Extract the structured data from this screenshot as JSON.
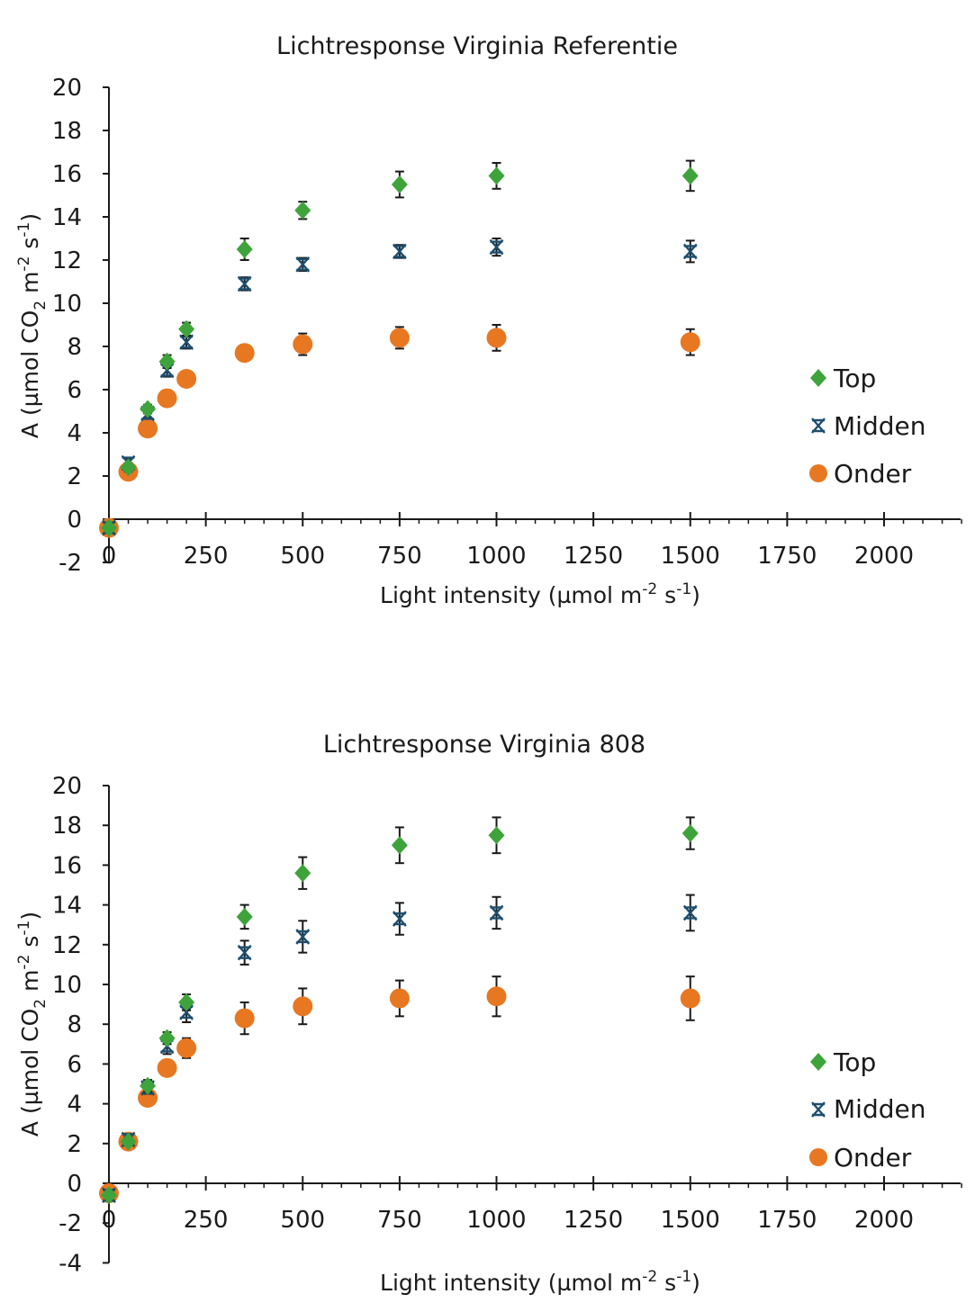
{
  "colors": {
    "top": "#3ea33b",
    "midden": "#1d4e6e",
    "onder": "#e87722",
    "axis": "#1a1a1a",
    "errorbar": "#1a1a1a"
  },
  "chart_data": [
    {
      "type": "scatter",
      "title": "Lichtresponse Virginia Referentie",
      "xlabel": {
        "main": "Light intensity (µmol m",
        "sup1": "-2",
        "mid": " s",
        "sup2": "-1",
        "end": ")"
      },
      "ylabel": {
        "main": "A (µmol CO",
        "sub": "2",
        "mid1": " m",
        "sup1": "-2",
        "mid2": " s",
        "sup2": "-1",
        "end": ")"
      },
      "xlim": [
        0,
        2200
      ],
      "ylim": [
        -2,
        20
      ],
      "xticks": [
        0,
        250,
        500,
        750,
        1000,
        1250,
        1500,
        1750,
        2000
      ],
      "yticks": [
        -2,
        0,
        2,
        4,
        6,
        8,
        10,
        12,
        14,
        16,
        18,
        20
      ],
      "x": [
        0,
        50,
        100,
        150,
        200,
        350,
        500,
        750,
        1000,
        1500
      ],
      "legend_position": "right",
      "series": [
        {
          "name": "Top",
          "marker": "diamond",
          "values": [
            -0.4,
            2.4,
            5.1,
            7.3,
            8.8,
            12.5,
            14.3,
            15.5,
            15.9,
            15.9
          ],
          "errors": [
            0.2,
            0.2,
            0.2,
            0.3,
            0.3,
            0.5,
            0.4,
            0.6,
            0.6,
            0.7
          ]
        },
        {
          "name": "Midden",
          "marker": "x-star",
          "values": [
            -0.4,
            2.6,
            4.9,
            6.9,
            8.2,
            10.9,
            11.8,
            12.4,
            12.6,
            12.4
          ],
          "errors": [
            0.2,
            0.2,
            0.2,
            0.3,
            0.3,
            0.3,
            0.3,
            0.3,
            0.4,
            0.5
          ]
        },
        {
          "name": "Onder",
          "marker": "circle",
          "values": [
            -0.4,
            2.2,
            4.2,
            5.6,
            6.5,
            7.7,
            8.1,
            8.4,
            8.4,
            8.2
          ],
          "errors": [
            0.2,
            0.2,
            0.2,
            0.2,
            0.2,
            0.3,
            0.5,
            0.5,
            0.6,
            0.6
          ]
        }
      ]
    },
    {
      "type": "scatter",
      "title": "Lichtresponse Virginia 808",
      "xlabel": {
        "main": "Light intensity (µmol m",
        "sup1": "-2",
        "mid": " s",
        "sup2": "-1",
        "end": ")"
      },
      "ylabel": {
        "main": "A (µmol CO",
        "sub": "2",
        "mid1": " m",
        "sup1": "-2",
        "mid2": " s",
        "sup2": "-1",
        "end": ")"
      },
      "xlim": [
        0,
        2200
      ],
      "ylim": [
        -4,
        20
      ],
      "xticks": [
        0,
        250,
        500,
        750,
        1000,
        1250,
        1500,
        1750,
        2000
      ],
      "yticks": [
        -4,
        -2,
        0,
        2,
        4,
        6,
        8,
        10,
        12,
        14,
        16,
        18,
        20
      ],
      "x": [
        0,
        50,
        100,
        150,
        200,
        350,
        500,
        750,
        1000,
        1500
      ],
      "legend_position": "right",
      "series": [
        {
          "name": "Top",
          "marker": "diamond",
          "values": [
            -0.6,
            2.1,
            4.9,
            7.3,
            9.1,
            13.4,
            15.6,
            17.0,
            17.5,
            17.6
          ],
          "errors": [
            0.2,
            0.2,
            0.3,
            0.3,
            0.4,
            0.6,
            0.8,
            0.9,
            0.9,
            0.8
          ]
        },
        {
          "name": "Midden",
          "marker": "x-star",
          "values": [
            -0.6,
            2.2,
            4.8,
            6.9,
            8.6,
            11.6,
            12.4,
            13.3,
            13.6,
            13.6
          ],
          "errors": [
            0.2,
            0.2,
            0.3,
            0.4,
            0.5,
            0.6,
            0.8,
            0.8,
            0.8,
            0.9
          ]
        },
        {
          "name": "Onder",
          "marker": "circle",
          "values": [
            -0.5,
            2.1,
            4.3,
            5.8,
            6.8,
            8.3,
            8.9,
            9.3,
            9.4,
            9.3
          ],
          "errors": [
            0.2,
            0.2,
            0.3,
            0.3,
            0.5,
            0.8,
            0.9,
            0.9,
            1.0,
            1.1
          ]
        }
      ]
    }
  ]
}
